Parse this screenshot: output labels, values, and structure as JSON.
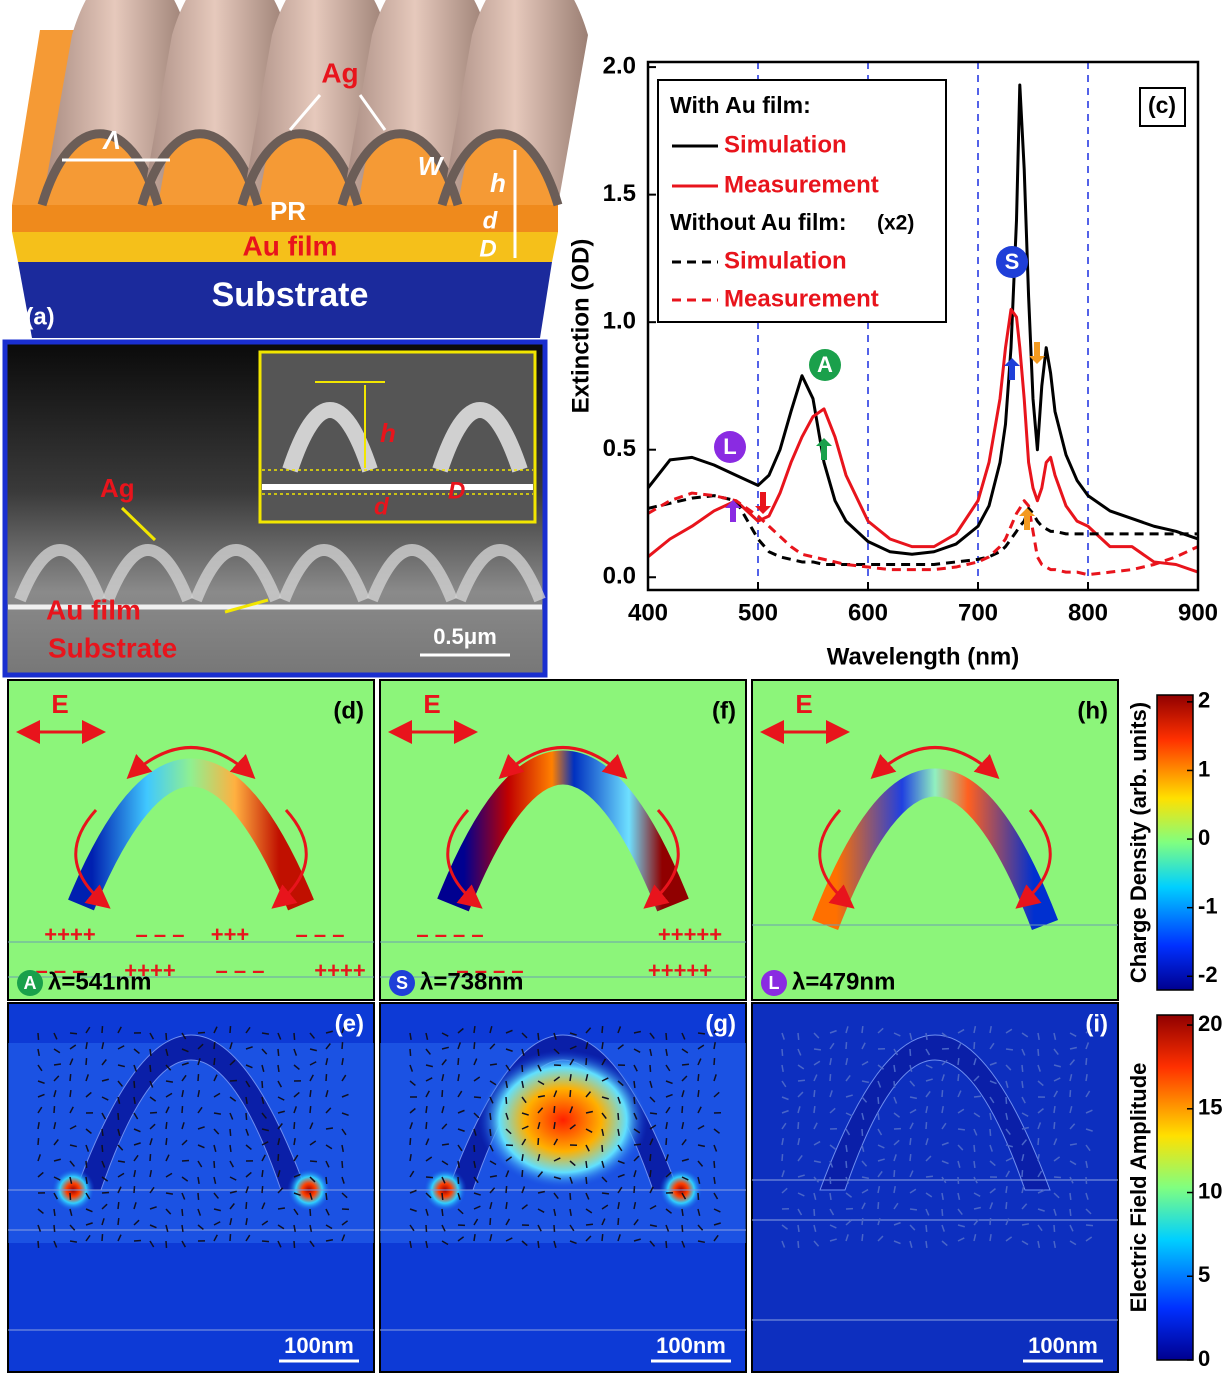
{
  "panel_a": {
    "label": "(a)",
    "lambda": "Λ",
    "ag": "Ag",
    "w": "W",
    "h": "h",
    "pr": "PR",
    "au": "Au film",
    "d": "d",
    "D": "D",
    "substrate": "Substrate"
  },
  "sem": {
    "ag": "Ag",
    "au": "Au film",
    "substrate": "Substrate",
    "scale": "0.5μm",
    "h": "h",
    "D": "D",
    "d": "d"
  },
  "chart_data": {
    "type": "line",
    "panel": "(c)",
    "x_label": "Wavelength (nm)",
    "y_label": "Extinction (OD)",
    "xlim": [
      400,
      900
    ],
    "xticks": [
      400,
      500,
      600,
      700,
      800,
      900
    ],
    "ylim": [
      -0.05,
      2.02
    ],
    "yticks": [
      {
        "value": 0,
        "label": "0.0"
      },
      {
        "value": 0.5,
        "label": "0.5"
      },
      {
        "value": 1,
        "label": "1.0"
      },
      {
        "value": 1.5,
        "label": "1.5"
      },
      {
        "value": 2,
        "label": "2.0"
      }
    ],
    "vlines": [
      500,
      600,
      700,
      800
    ],
    "vline_color": "#1a2fe0",
    "legend_groups": [
      "With Au film:",
      "Without Au film:"
    ],
    "legend_note": "(x2)",
    "markers": [
      "S",
      "A",
      "L"
    ],
    "x": [
      400,
      420,
      440,
      460,
      480,
      500,
      510,
      520,
      530,
      540,
      550,
      560,
      570,
      580,
      600,
      620,
      640,
      660,
      680,
      700,
      710,
      720,
      725,
      730,
      735,
      738,
      742,
      746,
      750,
      754,
      758,
      762,
      766,
      770,
      780,
      790,
      800,
      820,
      840,
      860,
      880,
      900
    ],
    "series": [
      {
        "name": "Simulation",
        "color": "#000000",
        "dashed": false,
        "values": [
          0.35,
          0.46,
          0.47,
          0.44,
          0.4,
          0.36,
          0.4,
          0.5,
          0.65,
          0.79,
          0.7,
          0.45,
          0.3,
          0.22,
          0.14,
          0.1,
          0.09,
          0.1,
          0.13,
          0.2,
          0.28,
          0.45,
          0.6,
          0.9,
          1.4,
          1.93,
          1.6,
          1.1,
          0.7,
          0.5,
          0.75,
          0.9,
          0.8,
          0.65,
          0.48,
          0.38,
          0.32,
          0.26,
          0.23,
          0.2,
          0.18,
          0.15
        ]
      },
      {
        "name": "Measurement",
        "color": "#e8141c",
        "dashed": false,
        "values": [
          0.08,
          0.15,
          0.2,
          0.26,
          0.3,
          0.22,
          0.24,
          0.33,
          0.45,
          0.55,
          0.63,
          0.66,
          0.55,
          0.4,
          0.22,
          0.15,
          0.12,
          0.12,
          0.17,
          0.3,
          0.45,
          0.7,
          0.9,
          1.05,
          1.02,
          0.9,
          0.7,
          0.45,
          0.35,
          0.3,
          0.35,
          0.45,
          0.47,
          0.4,
          0.28,
          0.22,
          0.2,
          0.12,
          0.12,
          0.06,
          0.05,
          0.02
        ]
      },
      {
        "name": "Simulation",
        "color": "#000000",
        "dashed": true,
        "values": [
          0.27,
          0.29,
          0.31,
          0.32,
          0.3,
          0.15,
          0.1,
          0.08,
          0.07,
          0.06,
          0.06,
          0.05,
          0.05,
          0.05,
          0.05,
          0.05,
          0.05,
          0.05,
          0.06,
          0.07,
          0.08,
          0.1,
          0.12,
          0.15,
          0.18,
          0.2,
          0.22,
          0.27,
          0.25,
          0.22,
          0.2,
          0.19,
          0.18,
          0.18,
          0.17,
          0.17,
          0.17,
          0.17,
          0.17,
          0.17,
          0.17,
          0.17
        ]
      },
      {
        "name": "Measurement",
        "color": "#e8141c",
        "dashed": true,
        "values": [
          0.25,
          0.3,
          0.33,
          0.32,
          0.3,
          0.24,
          0.2,
          0.16,
          0.12,
          0.09,
          0.08,
          0.07,
          0.06,
          0.05,
          0.04,
          0.03,
          0.03,
          0.03,
          0.04,
          0.06,
          0.08,
          0.12,
          0.15,
          0.2,
          0.25,
          0.27,
          0.3,
          0.28,
          0.18,
          0.08,
          0.05,
          0.04,
          0.03,
          0.03,
          0.02,
          0.02,
          0.01,
          0.02,
          0.03,
          0.05,
          0.08,
          0.12
        ]
      }
    ]
  },
  "maps": [
    {
      "label": "(d)",
      "field": "E",
      "mode": "A",
      "wavelength": "λ=541nm",
      "charges_top": [
        "++++",
        "– – –",
        "+++",
        "– – –"
      ],
      "charges_bottom": [
        "– – –",
        "++++",
        "– – –",
        "++++"
      ]
    },
    {
      "label": "(f)",
      "field": "E",
      "mode": "S",
      "wavelength": "λ=738nm",
      "charges_top": [
        "– – – –",
        "+++++"
      ],
      "charges_bottom": [
        "– – – –",
        "+++++"
      ]
    },
    {
      "label": "(h)",
      "field": "E",
      "mode": "L",
      "wavelength": "λ=479nm",
      "charges_top": [],
      "charges_bottom": []
    }
  ],
  "fields": [
    {
      "label": "(e)",
      "scale": "100nm"
    },
    {
      "label": "(g)",
      "scale": "100nm"
    },
    {
      "label": "(i)",
      "scale": "100nm"
    }
  ],
  "colorbars": [
    {
      "title": "Charge Density (arb. units)",
      "lim": [
        -2.2,
        2.1
      ],
      "ticks": [
        2,
        1,
        0,
        -1,
        -2
      ]
    },
    {
      "title": "Electric Field Amplitude",
      "lim": [
        0,
        20.6
      ],
      "ticks": [
        20,
        15,
        10,
        5,
        0
      ]
    }
  ]
}
